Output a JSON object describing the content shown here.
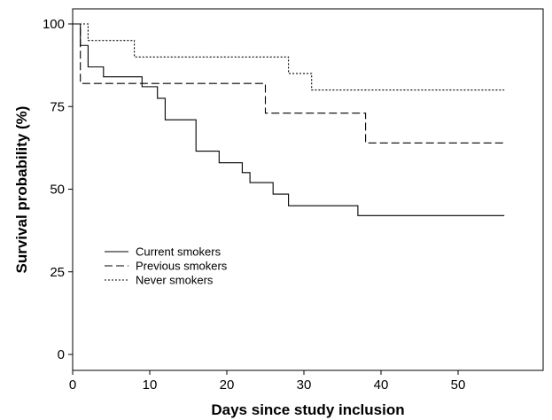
{
  "chart_data": {
    "type": "line",
    "step": true,
    "title": "",
    "xlabel": "Days since study inclusion",
    "ylabel": "Survival probability (%)",
    "xlim": [
      0,
      60
    ],
    "ylim": [
      0,
      100
    ],
    "xticks": [
      0,
      10,
      20,
      30,
      40,
      50
    ],
    "yticks": [
      0,
      25,
      50,
      75,
      100
    ],
    "legend_position": "center-left",
    "grid": false,
    "series": [
      {
        "name": "Current smokers",
        "line_style": "solid",
        "x": [
          0,
          1,
          2,
          4,
          9,
          11,
          12,
          16,
          19,
          22,
          23,
          26,
          28,
          37,
          56
        ],
        "y": [
          100,
          93.5,
          87,
          84,
          81,
          77.5,
          71,
          61.5,
          58,
          55,
          52,
          48.5,
          45,
          42,
          42
        ]
      },
      {
        "name": "Previous smokers",
        "line_style": "dashed",
        "x": [
          0,
          1,
          25,
          38,
          56
        ],
        "y": [
          100,
          82,
          73,
          64,
          64
        ]
      },
      {
        "name": "Never smokers",
        "line_style": "dotted",
        "x": [
          0,
          2,
          8,
          28,
          31,
          56
        ],
        "y": [
          100,
          95,
          90,
          85,
          80,
          80
        ]
      }
    ]
  }
}
